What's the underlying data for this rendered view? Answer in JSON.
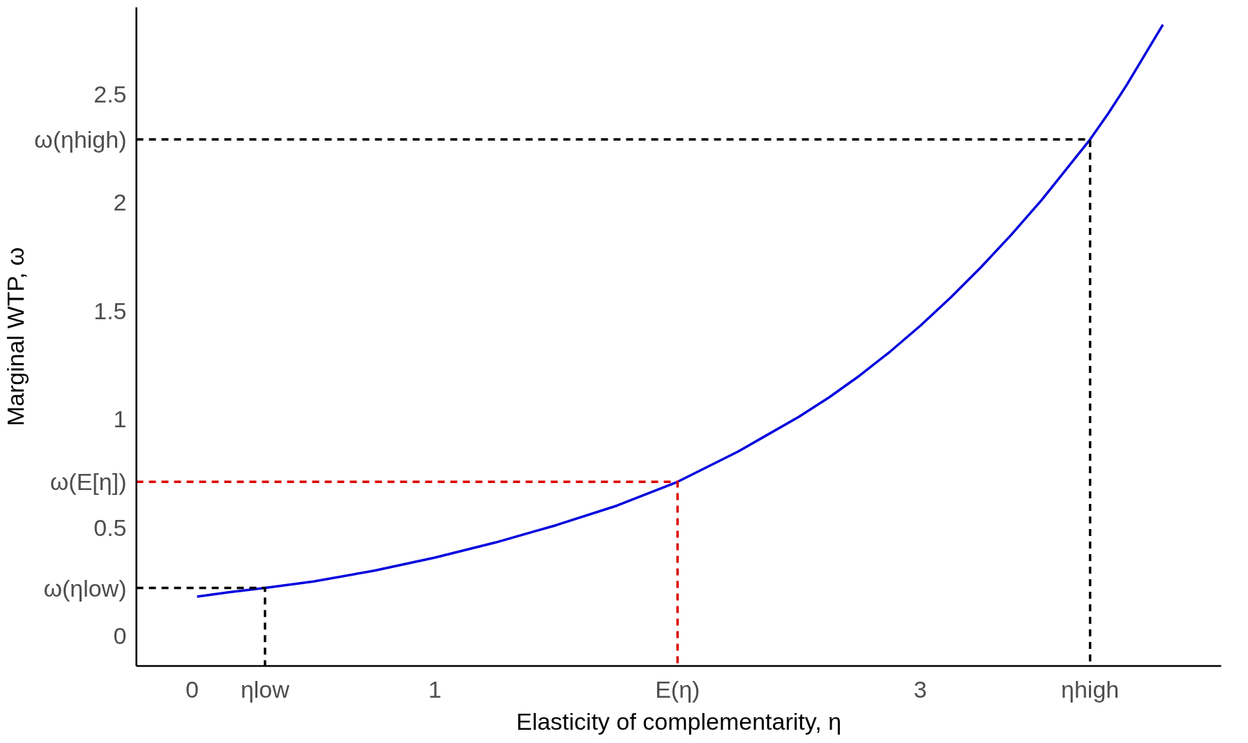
{
  "chart_data": {
    "type": "line",
    "xlabel": "Elasticity of complementarity, η",
    "ylabel": "Marginal WTP, ω",
    "xlim": [
      -0.23,
      4.24
    ],
    "ylim": [
      -0.14,
      2.9
    ],
    "xticks": [
      0,
      {
        "value": 0.3,
        "label": "ηlow"
      },
      1,
      {
        "value": 2,
        "label": "E(η)"
      },
      3,
      {
        "value": 3.7,
        "label": "ηhigh"
      }
    ],
    "yticks": [
      0,
      {
        "value": 0.22,
        "label": "ω(ηlow)"
      },
      0.5,
      {
        "value": 0.71,
        "label": "ω(E[η])"
      },
      1,
      1.5,
      2,
      {
        "value": 2.29,
        "label": "ω(ηhigh)"
      },
      2.5
    ],
    "grid": false,
    "marker": "none",
    "series": [
      {
        "color": "#0000dd",
        "line_style": "solid",
        "x": [
          0.02,
          0.15,
          0.3,
          0.5,
          0.75,
          1,
          1.25,
          1.5,
          1.75,
          2,
          2.125,
          2.25,
          2.375,
          2.5,
          2.625,
          2.75,
          2.875,
          3,
          3.125,
          3.25,
          3.375,
          3.5,
          3.6,
          3.7,
          3.775,
          3.85,
          3.925,
          4
        ],
        "values": [
          0.18,
          0.2,
          0.22,
          0.25,
          0.3,
          0.36,
          0.43,
          0.51,
          0.6,
          0.71,
          0.78,
          0.85,
          0.93,
          1.01,
          1.1,
          1.2,
          1.31,
          1.43,
          1.56,
          1.7,
          1.85,
          2.01,
          2.15,
          2.29,
          2.41,
          2.54,
          2.68,
          2.82
        ]
      },
      {
        "color": "#000000",
        "line_style": "dashed",
        "x": [
          -0.23,
          0.3,
          0.3
        ],
        "values": [
          0.22,
          0.22,
          -0.14
        ]
      },
      {
        "color": "#dd0000",
        "line_style": "dashed",
        "x": [
          -0.23,
          2,
          2
        ],
        "values": [
          0.71,
          0.71,
          -0.14
        ]
      },
      {
        "color": "#000000",
        "line_style": "dashed",
        "x": [
          -0.23,
          3.7,
          3.7
        ],
        "values": [
          2.29,
          2.29,
          -0.14
        ]
      }
    ]
  }
}
